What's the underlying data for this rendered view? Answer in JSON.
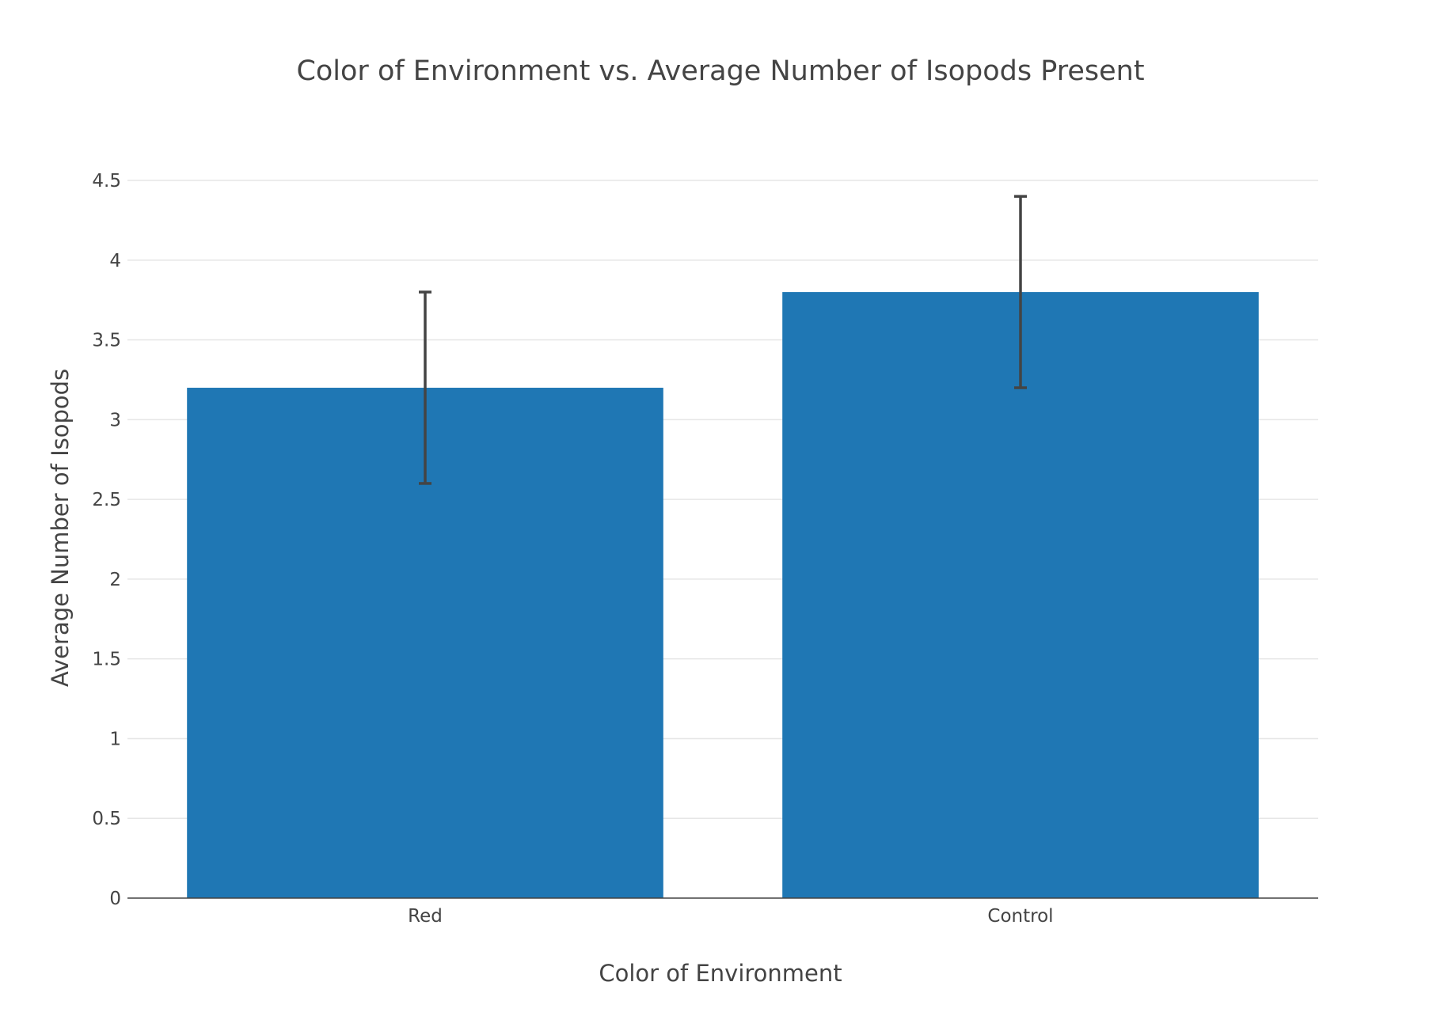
{
  "chart_data": {
    "type": "bar",
    "title": "Color of Environment vs. Average Number of Isopods Present",
    "xlabel": "Color of Environment",
    "ylabel": "Average Number of Isopods",
    "categories": [
      "Red",
      "Control"
    ],
    "values": [
      3.2,
      3.8
    ],
    "error_bars": [
      0.6,
      0.6
    ],
    "ylim": [
      0,
      4.5
    ],
    "yticks": [
      "0",
      "0.5",
      "1",
      "1.5",
      "2",
      "2.5",
      "3",
      "3.5",
      "4",
      "4.5"
    ],
    "grid": true,
    "bar_color": "#1f77b4",
    "error_bar_color": "#444444"
  }
}
